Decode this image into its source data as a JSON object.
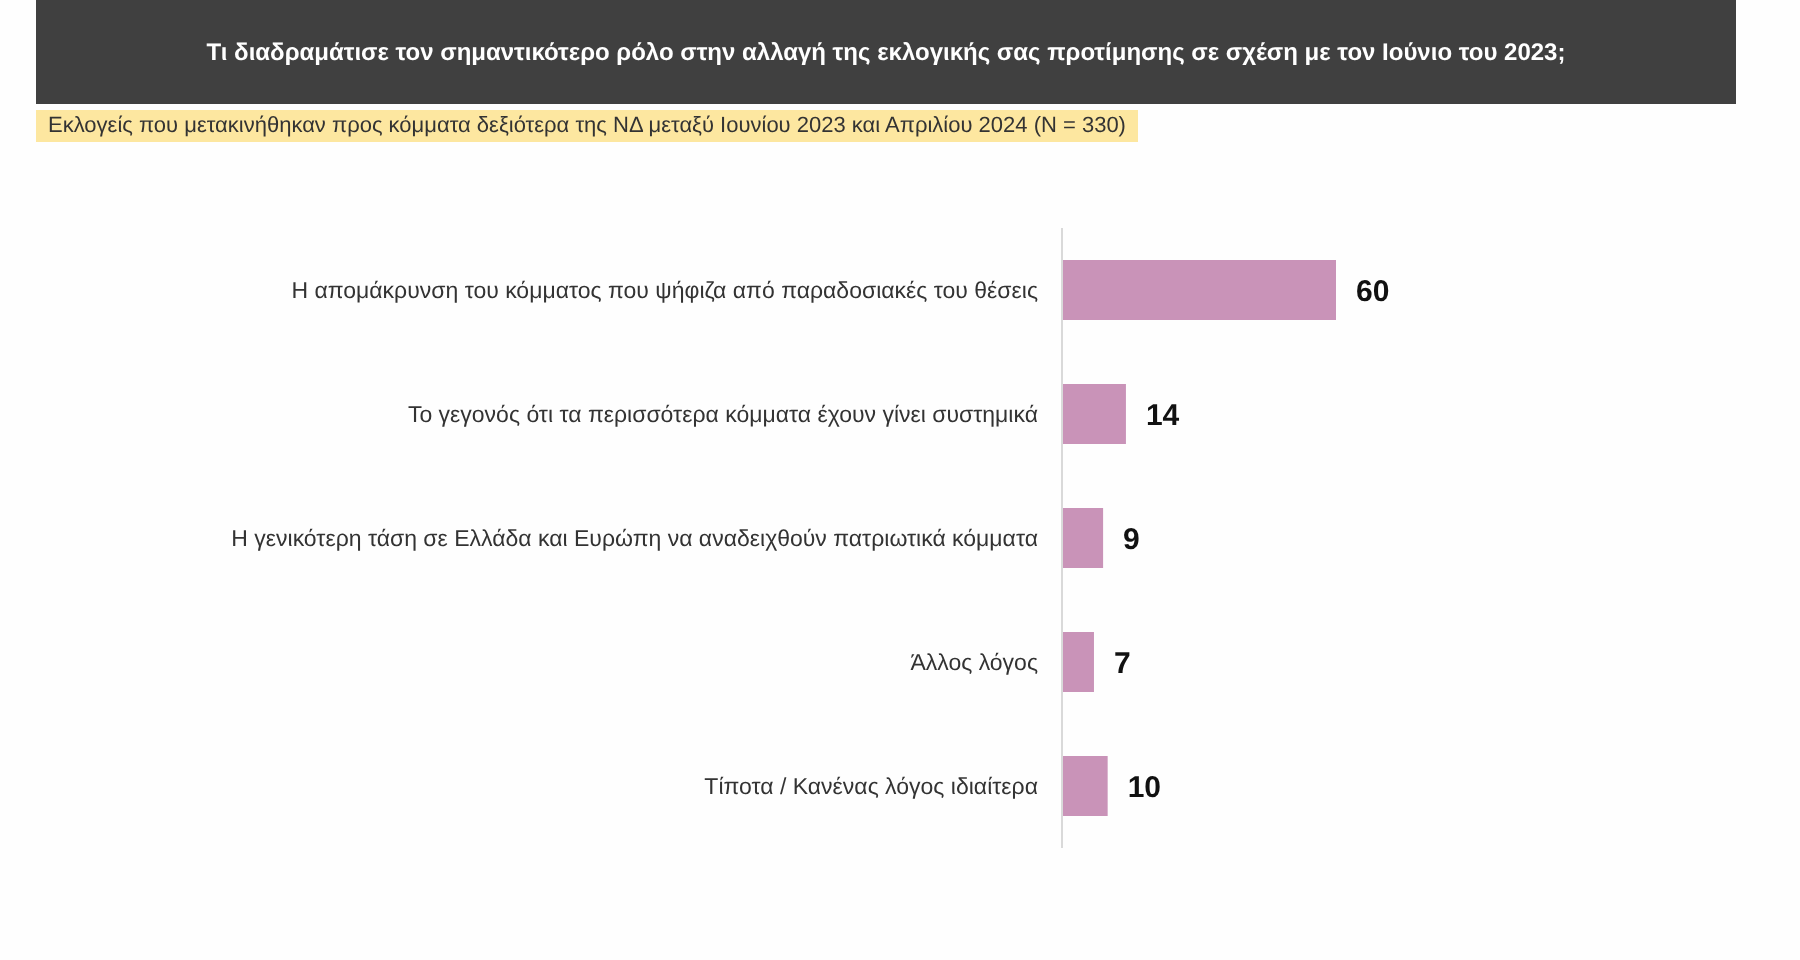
{
  "chart_data": {
    "type": "bar",
    "orientation": "horizontal",
    "title": "Τι διαδραμάτισε τον σημαντικότερο ρόλο στην αλλαγή της εκλογικής σας προτίμησης σε σχέση με τον Ιούνιο του 2023;",
    "subtitle": "Εκλογείς που μετακινήθηκαν προς κόμματα δεξιότερα της ΝΔ μεταξύ Ιουνίου 2023 και Απριλίου 2024 (Ν = 330)",
    "categories": [
      "Η απομάκρυνση του κόμματος που ψήφιζα από παραδοσιακές του θέσεις",
      "Το γεγονός ότι τα περισσότερα κόμματα έχουν γίνει συστημικά",
      "Η γενικότερη τάση σε Ελλάδα και Ευρώπη να αναδειχθούν πατριωτικά κόμματα",
      "Άλλος λόγος",
      "Τίποτα / Κανένας λόγος ιδιαίτερα"
    ],
    "values": [
      60,
      14,
      9,
      7,
      10
    ],
    "color": "#c993b8",
    "data_labels": true
  }
}
